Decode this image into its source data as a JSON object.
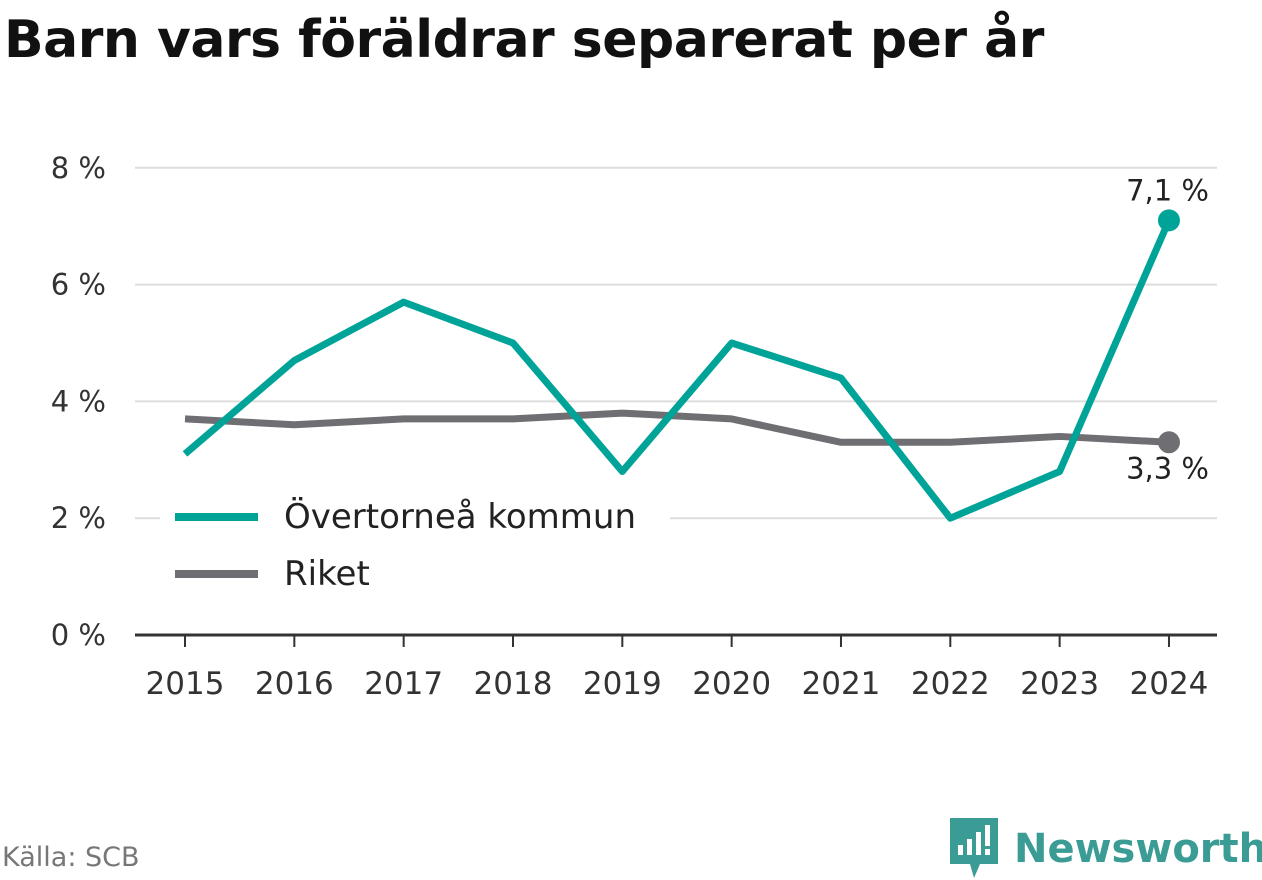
{
  "title": "Barn vars föräldrar separerat per år",
  "source": "Källa: SCB",
  "brand": {
    "name": "Newsworthy",
    "color": "#3a9c94",
    "icon": "bar-chart-speech-bubble-icon"
  },
  "chart_data": {
    "type": "line",
    "title": "Barn vars föräldrar separerat per år",
    "x": [
      "2015",
      "2016",
      "2017",
      "2018",
      "2019",
      "2020",
      "2021",
      "2022",
      "2023",
      "2024"
    ],
    "series": [
      {
        "name": "Övertorneå kommun",
        "color": "#00a398",
        "values": [
          3.1,
          4.7,
          5.7,
          5.0,
          2.8,
          5.0,
          4.4,
          2.0,
          2.8,
          7.1
        ]
      },
      {
        "name": "Riket",
        "color": "#6f6e73",
        "values": [
          3.7,
          3.6,
          3.7,
          3.7,
          3.8,
          3.7,
          3.3,
          3.3,
          3.4,
          3.3
        ]
      }
    ],
    "end_labels": [
      "7,1 %",
      "3,3 %"
    ],
    "yticks": [
      "0 %",
      "2 %",
      "4 %",
      "6 %",
      "8 %"
    ],
    "ytick_values": [
      0,
      2,
      4,
      6,
      8
    ],
    "ylim": [
      0,
      8
    ],
    "grid": true,
    "legend_position": "lower-left"
  }
}
